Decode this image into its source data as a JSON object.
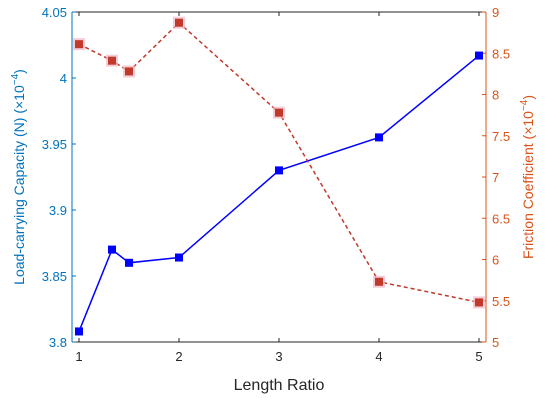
{
  "chart_data": {
    "type": "line",
    "xlabel": "Length Ratio",
    "ylabel_left": {
      "text": "Load-carrying Capacity (N) (×10",
      "exp": "−4",
      "close": ")"
    },
    "ylabel_right": {
      "text": "Friction Coefficient (×10",
      "exp": "−4",
      "close": ")"
    },
    "xlim": [
      0.93,
      5.07
    ],
    "ylim_left": [
      3.8,
      4.05
    ],
    "ylim_right": [
      5,
      9
    ],
    "x_ticks": [
      1,
      2,
      3,
      4,
      5
    ],
    "x_tick_labels": [
      "1",
      "2",
      "3",
      "4",
      "5"
    ],
    "y_left_ticks": [
      3.8,
      3.85,
      3.9,
      3.95,
      4,
      4.05
    ],
    "y_left_tick_labels": [
      "3.8",
      "3.85",
      "3.9",
      "3.95",
      "4",
      "4.05"
    ],
    "y_right_ticks": [
      5,
      5.5,
      6,
      6.5,
      7,
      7.5,
      8,
      8.5,
      9
    ],
    "y_right_tick_labels": [
      "5",
      "5.5",
      "6",
      "6.5",
      "7",
      "7.5",
      "8",
      "8.5",
      "9"
    ],
    "grid": false,
    "series": [
      {
        "axis": "left",
        "style": "solid",
        "color": "#0000ff",
        "marker": "square",
        "x": [
          1,
          1.33,
          1.5,
          2,
          3,
          4,
          5
        ],
        "y": [
          3.808,
          3.87,
          3.86,
          3.864,
          3.93,
          3.955,
          4.017
        ]
      },
      {
        "axis": "right",
        "style": "dashed",
        "color": "#c0392b",
        "marker": "square",
        "x": [
          1,
          1.33,
          1.5,
          2,
          3,
          4,
          5
        ],
        "y": [
          8.61,
          8.41,
          8.28,
          8.87,
          7.78,
          5.73,
          5.48
        ]
      }
    ],
    "colors": {
      "left_axis": "#0072bd",
      "right_axis": "#d95319",
      "x_axis": "#262626"
    }
  }
}
